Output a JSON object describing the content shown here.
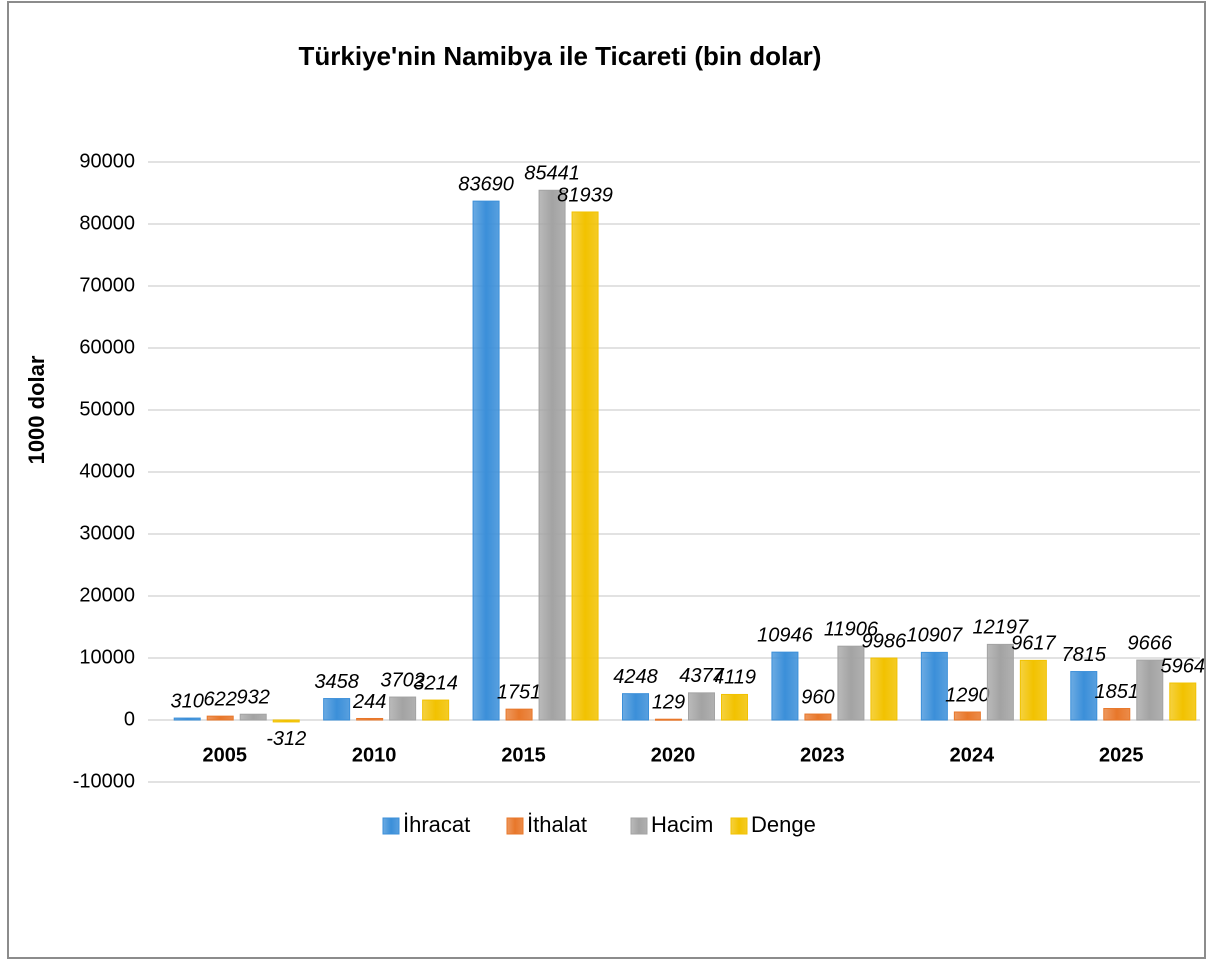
{
  "chart_data": {
    "type": "bar",
    "title": "Türkiye'nin Namibya ile Ticareti (bin dolar)",
    "y_label": "1000 dolar",
    "categories": [
      "2005",
      "2010",
      "2015",
      "2020",
      "2023",
      "2024",
      "2025"
    ],
    "series": [
      {
        "name": "İhracat",
        "color": "#3b8fd9",
        "values": [
          310,
          3458,
          83690,
          4248,
          10946,
          10907,
          7815
        ]
      },
      {
        "name": "İthalat",
        "color": "#e8772a",
        "values": [
          622,
          244,
          1751,
          129,
          960,
          1290,
          1851
        ]
      },
      {
        "name": "Hacim",
        "color": "#a3a3a3",
        "values": [
          932,
          3702,
          85441,
          4377,
          11906,
          12197,
          9666
        ]
      },
      {
        "name": "Denge",
        "color": "#f2c200",
        "values": [
          -312,
          3214,
          81939,
          4119,
          9986,
          9617,
          5964
        ]
      }
    ],
    "ylim": [
      -10000,
      90000
    ],
    "yticks": [
      -10000,
      0,
      10000,
      20000,
      30000,
      40000,
      50000,
      60000,
      70000,
      80000,
      90000
    ],
    "grid": true,
    "legend": "bottom"
  }
}
